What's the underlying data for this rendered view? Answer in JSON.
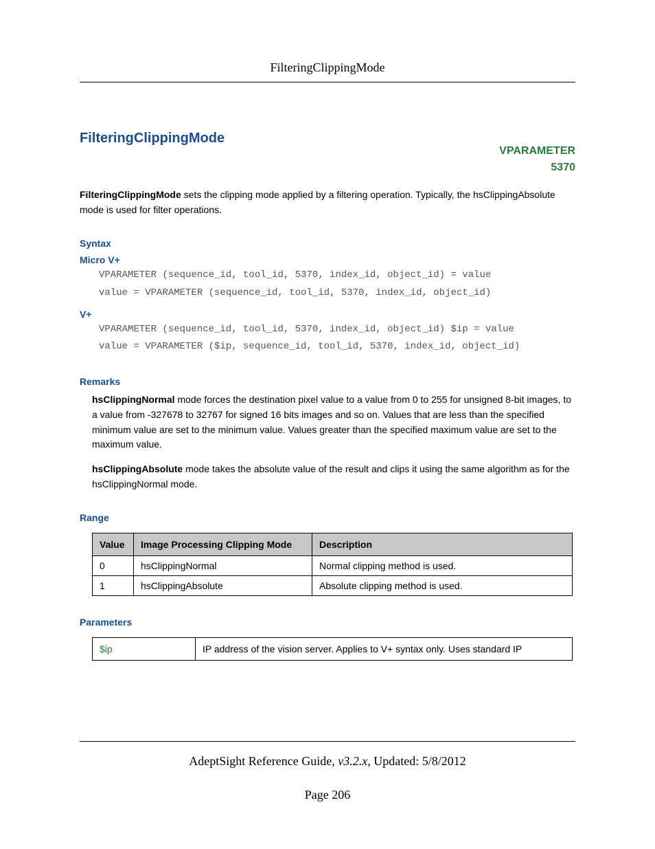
{
  "header": {
    "running_title": "FilteringClippingMode"
  },
  "title": "FilteringClippingMode",
  "vparameter": {
    "label": "VPARAMETER",
    "code": "5370"
  },
  "intro": {
    "bold_lead": "FilteringClippingMode",
    "rest": " sets the clipping mode applied by a filtering operation. Typically, the hsClippingAbsolute mode is used for filter operations."
  },
  "syntax": {
    "heading": "Syntax",
    "micro_label": "Micro V+",
    "micro_code": "VPARAMETER (sequence_id, tool_id, 5370, index_id, object_id) = value\nvalue = VPARAMETER (sequence_id, tool_id, 5370, index_id, object_id)",
    "vplus_label": "V+",
    "vplus_code": "VPARAMETER (sequence_id, tool_id, 5370, index_id, object_id) $ip = value\nvalue = VPARAMETER ($ip, sequence_id, tool_id, 5370, index_id, object_id)"
  },
  "remarks": {
    "heading": "Remarks",
    "p1_bold": "hsClippingNormal",
    "p1_rest": " mode forces the destination pixel value to a value from 0 to 255 for unsigned 8-bit images, to a value from -327678 to 32767 for signed 16 bits images and so on. Values that are less than the specified minimum value are set to the minimum value. Values greater than the specified maximum value are set to the maximum value.",
    "p2_bold": "hsClippingAbsolute",
    "p2_rest": " mode takes the absolute value of the result and clips it using the same algorithm as for the hsClippingNormal mode."
  },
  "range": {
    "heading": "Range",
    "columns": [
      "Value",
      "Image Processing Clipping Mode",
      "Description"
    ],
    "rows": [
      [
        "0",
        "hsClippingNormal",
        "Normal clipping method is used."
      ],
      [
        "1",
        "hsClippingAbsolute",
        "Absolute clipping method is used."
      ]
    ],
    "col_widths": [
      "60px",
      "260px",
      "auto"
    ]
  },
  "parameters": {
    "heading": "Parameters",
    "rows": [
      {
        "name": "$ip",
        "desc": "IP address of the vision server. Applies to V+ syntax only. Uses standard IP"
      }
    ]
  },
  "footer": {
    "guide": "AdeptSight Reference Guide",
    "version_italic": ", v3.2.x",
    "updated": ", Updated: 5/8/2012",
    "page": "Page 206"
  }
}
